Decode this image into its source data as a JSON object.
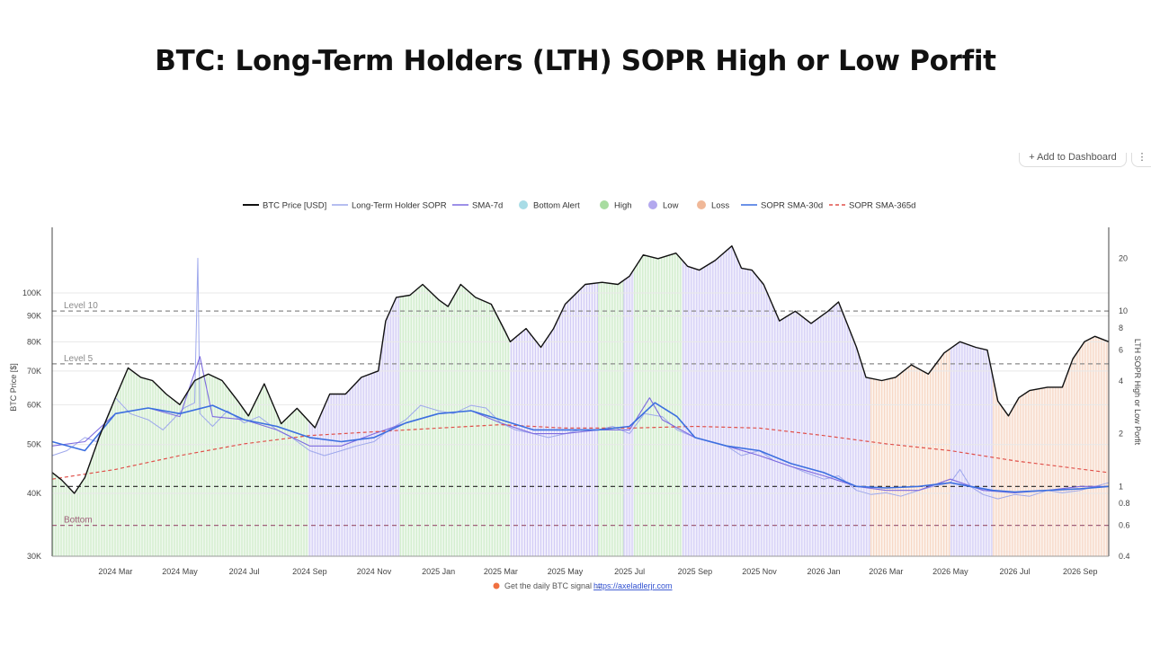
{
  "page_title": "BTC: Long-Term Holders (LTH) SOPR High or Low Porfit",
  "toolbar": {
    "add_to_dashboard": "+ Add to Dashboard",
    "menu": "⋮"
  },
  "colors": {
    "price": "#111111",
    "sopr": "#9ea8ec",
    "sma7": "#7d6be0",
    "bottom_alert": "#a8dce6",
    "high": "#a8dca0",
    "low": "#b3a8ee",
    "loss": "#f0b898",
    "sma30": "#3c6fe0",
    "sma365": "#e0504a"
  },
  "chart_data": {
    "type": "line",
    "title": "",
    "x_tick_labels": [
      "2024 Mar",
      "2024 May",
      "2024 Jul",
      "2024 Sep",
      "2024 Nov",
      "2025 Jan",
      "2025 Mar",
      "2025 May",
      "2025 Jul",
      "2025 Sep",
      "2025 Nov",
      "2026 Jan",
      "2026 Mar",
      "2026 May",
      "2026 Jul",
      "2026 Sep"
    ],
    "x_range": [
      "2024-01-01",
      "2026-09-28"
    ],
    "left_axis": {
      "label": "BTC Price [$]",
      "scale": "log",
      "range": [
        30000,
        135000
      ],
      "tick_labels": [
        "30K",
        "40K",
        "50K",
        "60K",
        "70K",
        "80K",
        "90K",
        "100K"
      ]
    },
    "right_axis": {
      "label": "LTH SOPR High or Low Porfit",
      "scale": "log",
      "range": [
        0.4,
        30
      ],
      "tick_labels": [
        "0.4",
        "0.6",
        "0.8",
        "1",
        "2",
        "4",
        "6",
        "8",
        "10",
        "20"
      ]
    },
    "reference_lines": [
      {
        "label": "Level 10",
        "value": 10,
        "color": "#8a8a8a"
      },
      {
        "label": "Level 5",
        "value": 5,
        "color": "#8a8a8a"
      },
      {
        "label": "",
        "value": 1,
        "color": "#222222"
      },
      {
        "label": "Bottom",
        "value": 0.6,
        "color": "#a0607a"
      }
    ],
    "regimes": [
      {
        "state": "High",
        "start": "2024-01-01",
        "end": "2024-08-31"
      },
      {
        "state": "Low",
        "start": "2024-08-31",
        "end": "2024-11-25"
      },
      {
        "state": "High",
        "start": "2024-11-25",
        "end": "2025-03-10"
      },
      {
        "state": "Low",
        "start": "2025-03-10",
        "end": "2025-06-01"
      },
      {
        "state": "High",
        "start": "2025-06-01",
        "end": "2025-06-25"
      },
      {
        "state": "Low",
        "start": "2025-06-25",
        "end": "2025-07-05"
      },
      {
        "state": "High",
        "start": "2025-07-05",
        "end": "2025-08-20"
      },
      {
        "state": "Low",
        "start": "2025-08-20",
        "end": "2026-02-14"
      },
      {
        "state": "Loss",
        "start": "2026-02-14",
        "end": "2026-05-01"
      },
      {
        "state": "Low",
        "start": "2026-05-01",
        "end": "2026-06-10"
      },
      {
        "state": "Loss",
        "start": "2026-06-10",
        "end": "2026-09-28"
      }
    ],
    "series": [
      {
        "name": "BTC Price [USD]",
        "axis": "left",
        "style": "line",
        "x": [
          "2024-01-01",
          "2024-01-10",
          "2024-01-22",
          "2024-02-01",
          "2024-02-15",
          "2024-03-01",
          "2024-03-13",
          "2024-03-25",
          "2024-04-05",
          "2024-04-18",
          "2024-05-01",
          "2024-05-15",
          "2024-05-28",
          "2024-06-10",
          "2024-06-25",
          "2024-07-05",
          "2024-07-20",
          "2024-08-05",
          "2024-08-20",
          "2024-09-06",
          "2024-09-20",
          "2024-10-05",
          "2024-10-20",
          "2024-11-05",
          "2024-11-12",
          "2024-11-22",
          "2024-12-05",
          "2024-12-17",
          "2025-01-01",
          "2025-01-10",
          "2025-01-22",
          "2025-02-05",
          "2025-02-20",
          "2025-03-05",
          "2025-03-10",
          "2025-03-25",
          "2025-04-08",
          "2025-04-20",
          "2025-05-01",
          "2025-05-20",
          "2025-06-05",
          "2025-06-20",
          "2025-07-01",
          "2025-07-14",
          "2025-07-28",
          "2025-08-14",
          "2025-08-25",
          "2025-09-05",
          "2025-09-20",
          "2025-10-06",
          "2025-10-15",
          "2025-10-25",
          "2025-11-05",
          "2025-11-20",
          "2025-12-05",
          "2025-12-20",
          "2026-01-05",
          "2026-01-15",
          "2026-02-01",
          "2026-02-10",
          "2026-02-25",
          "2026-03-10",
          "2026-03-25",
          "2026-04-10",
          "2026-04-25",
          "2026-05-10",
          "2026-05-25",
          "2026-06-05",
          "2026-06-15",
          "2026-06-25",
          "2026-07-05",
          "2026-07-15",
          "2026-08-01",
          "2026-08-15",
          "2026-08-25",
          "2026-09-05",
          "2026-09-15",
          "2026-09-28"
        ],
        "values": [
          44000,
          42500,
          40000,
          43000,
          52000,
          62000,
          71000,
          68000,
          67000,
          63000,
          60000,
          67000,
          69000,
          67000,
          61000,
          57000,
          66000,
          55000,
          59000,
          54000,
          63000,
          63000,
          68000,
          70000,
          88000,
          98000,
          99000,
          104000,
          97000,
          94000,
          104000,
          98000,
          95000,
          84000,
          80000,
          85000,
          78000,
          85000,
          95000,
          104000,
          105000,
          104000,
          108000,
          119000,
          117000,
          120000,
          113000,
          111000,
          116000,
          124000,
          112000,
          111000,
          104000,
          88000,
          92000,
          87000,
          92000,
          96000,
          78000,
          68000,
          67000,
          68000,
          72000,
          69000,
          76000,
          80000,
          78000,
          77000,
          61000,
          57000,
          62000,
          64000,
          65000,
          65000,
          74000,
          80000,
          82000,
          80000
        ]
      },
      {
        "name": "Long-Term Holder SOPR",
        "axis": "right",
        "style": "line",
        "x": [
          "2024-01-01",
          "2024-01-15",
          "2024-02-01",
          "2024-02-12",
          "2024-03-01",
          "2024-03-15",
          "2024-04-01",
          "2024-04-15",
          "2024-05-05",
          "2024-05-15",
          "2024-05-18",
          "2024-05-20",
          "2024-06-01",
          "2024-06-15",
          "2024-07-01",
          "2024-07-15",
          "2024-08-01",
          "2024-08-15",
          "2024-09-01",
          "2024-09-15",
          "2024-10-01",
          "2024-10-15",
          "2024-11-01",
          "2024-11-15",
          "2024-12-01",
          "2024-12-15",
          "2025-01-01",
          "2025-01-15",
          "2025-02-01",
          "2025-02-15",
          "2025-03-01",
          "2025-03-15",
          "2025-04-01",
          "2025-04-15",
          "2025-05-01",
          "2025-05-15",
          "2025-06-01",
          "2025-06-15",
          "2025-07-01",
          "2025-07-15",
          "2025-08-01",
          "2025-08-15",
          "2025-09-01",
          "2025-09-15",
          "2025-10-01",
          "2025-10-15",
          "2025-11-01",
          "2025-11-15",
          "2025-12-01",
          "2025-12-15",
          "2026-01-01",
          "2026-01-15",
          "2026-02-01",
          "2026-02-15",
          "2026-03-01",
          "2026-03-15",
          "2026-04-01",
          "2026-04-15",
          "2026-05-01",
          "2026-05-10",
          "2026-05-20",
          "2026-06-01",
          "2026-06-15",
          "2026-07-01",
          "2026-07-15",
          "2026-08-01",
          "2026-08-15",
          "2026-09-01",
          "2026-09-15",
          "2026-09-28"
        ],
        "values": [
          1.5,
          1.6,
          1.9,
          1.8,
          3.2,
          2.6,
          2.4,
          2.1,
          2.8,
          3.0,
          20.0,
          2.6,
          2.2,
          2.7,
          2.3,
          2.5,
          2.1,
          1.9,
          1.6,
          1.5,
          1.6,
          1.7,
          1.8,
          2.1,
          2.4,
          2.9,
          2.7,
          2.6,
          2.9,
          2.8,
          2.3,
          2.1,
          2.0,
          1.9,
          2.0,
          2.1,
          2.1,
          2.2,
          2.0,
          2.6,
          2.5,
          2.1,
          1.9,
          1.8,
          1.7,
          1.5,
          1.6,
          1.4,
          1.3,
          1.2,
          1.1,
          1.15,
          0.95,
          0.9,
          0.92,
          0.88,
          0.95,
          1.0,
          1.05,
          1.25,
          1.0,
          0.9,
          0.85,
          0.9,
          0.88,
          0.95,
          0.92,
          0.95,
          1.0,
          1.05
        ]
      },
      {
        "name": "SMA-7d",
        "axis": "right",
        "style": "line",
        "x": [
          "2024-01-01",
          "2024-02-01",
          "2024-03-01",
          "2024-04-01",
          "2024-05-01",
          "2024-05-20",
          "2024-06-01",
          "2024-07-01",
          "2024-08-01",
          "2024-09-01",
          "2024-10-01",
          "2024-11-01",
          "2024-12-01",
          "2025-01-01",
          "2025-02-01",
          "2025-03-01",
          "2025-04-01",
          "2025-05-01",
          "2025-06-01",
          "2025-07-01",
          "2025-07-20",
          "2025-08-01",
          "2025-09-01",
          "2025-10-01",
          "2025-11-01",
          "2025-12-01",
          "2026-01-01",
          "2026-02-01",
          "2026-03-01",
          "2026-04-01",
          "2026-05-01",
          "2026-06-01",
          "2026-07-01",
          "2026-08-01",
          "2026-09-01",
          "2026-09-28"
        ],
        "values": [
          1.7,
          1.8,
          2.6,
          2.8,
          2.5,
          5.5,
          2.5,
          2.4,
          2.1,
          1.7,
          1.7,
          2.0,
          2.3,
          2.6,
          2.7,
          2.3,
          2.0,
          2.0,
          2.1,
          2.1,
          3.2,
          2.4,
          1.9,
          1.7,
          1.5,
          1.3,
          1.15,
          1.0,
          0.95,
          0.95,
          1.1,
          0.95,
          0.92,
          0.95,
          1.0,
          1.0
        ]
      },
      {
        "name": "SOPR SMA-30d",
        "axis": "right",
        "style": "line",
        "x": [
          "2024-01-01",
          "2024-02-01",
          "2024-03-01",
          "2024-04-01",
          "2024-05-01",
          "2024-06-01",
          "2024-07-01",
          "2024-08-01",
          "2024-09-01",
          "2024-10-01",
          "2024-11-01",
          "2024-12-01",
          "2025-01-01",
          "2025-02-01",
          "2025-03-01",
          "2025-04-01",
          "2025-05-01",
          "2025-06-01",
          "2025-07-01",
          "2025-07-25",
          "2025-08-15",
          "2025-09-01",
          "2025-10-01",
          "2025-11-01",
          "2025-12-01",
          "2026-01-01",
          "2026-02-01",
          "2026-03-01",
          "2026-04-01",
          "2026-05-01",
          "2026-05-20",
          "2026-06-10",
          "2026-07-01",
          "2026-08-01",
          "2026-09-01",
          "2026-09-28"
        ],
        "values": [
          1.8,
          1.6,
          2.6,
          2.8,
          2.6,
          2.9,
          2.4,
          2.2,
          1.9,
          1.8,
          1.9,
          2.3,
          2.6,
          2.7,
          2.4,
          2.1,
          2.1,
          2.1,
          2.2,
          3.0,
          2.5,
          1.9,
          1.7,
          1.6,
          1.35,
          1.2,
          1.0,
          0.98,
          1.0,
          1.05,
          1.0,
          0.95,
          0.93,
          0.95,
          0.97,
          1.0
        ]
      },
      {
        "name": "SOPR SMA-365d",
        "axis": "right",
        "style": "dashed",
        "x": [
          "2024-01-01",
          "2024-03-01",
          "2024-05-01",
          "2024-07-01",
          "2024-09-01",
          "2024-11-01",
          "2025-01-01",
          "2025-03-01",
          "2025-05-01",
          "2025-07-01",
          "2025-09-01",
          "2025-11-01",
          "2026-01-01",
          "2026-03-01",
          "2026-05-01",
          "2026-07-01",
          "2026-09-28"
        ],
        "values": [
          1.1,
          1.25,
          1.5,
          1.75,
          1.95,
          2.05,
          2.15,
          2.25,
          2.15,
          2.15,
          2.2,
          2.15,
          1.95,
          1.75,
          1.6,
          1.4,
          1.2
        ]
      }
    ],
    "legend": [
      "BTC Price [USD]",
      "Long-Term Holder SOPR",
      "SMA-7d",
      "Bottom Alert",
      "High",
      "Low",
      "Loss",
      "SOPR SMA-30d",
      "SOPR SMA-365d"
    ],
    "legend_position": "top-center",
    "footer": {
      "text": "Get the daily BTC signal → ",
      "link": "https://axeladlerjr.com"
    }
  }
}
